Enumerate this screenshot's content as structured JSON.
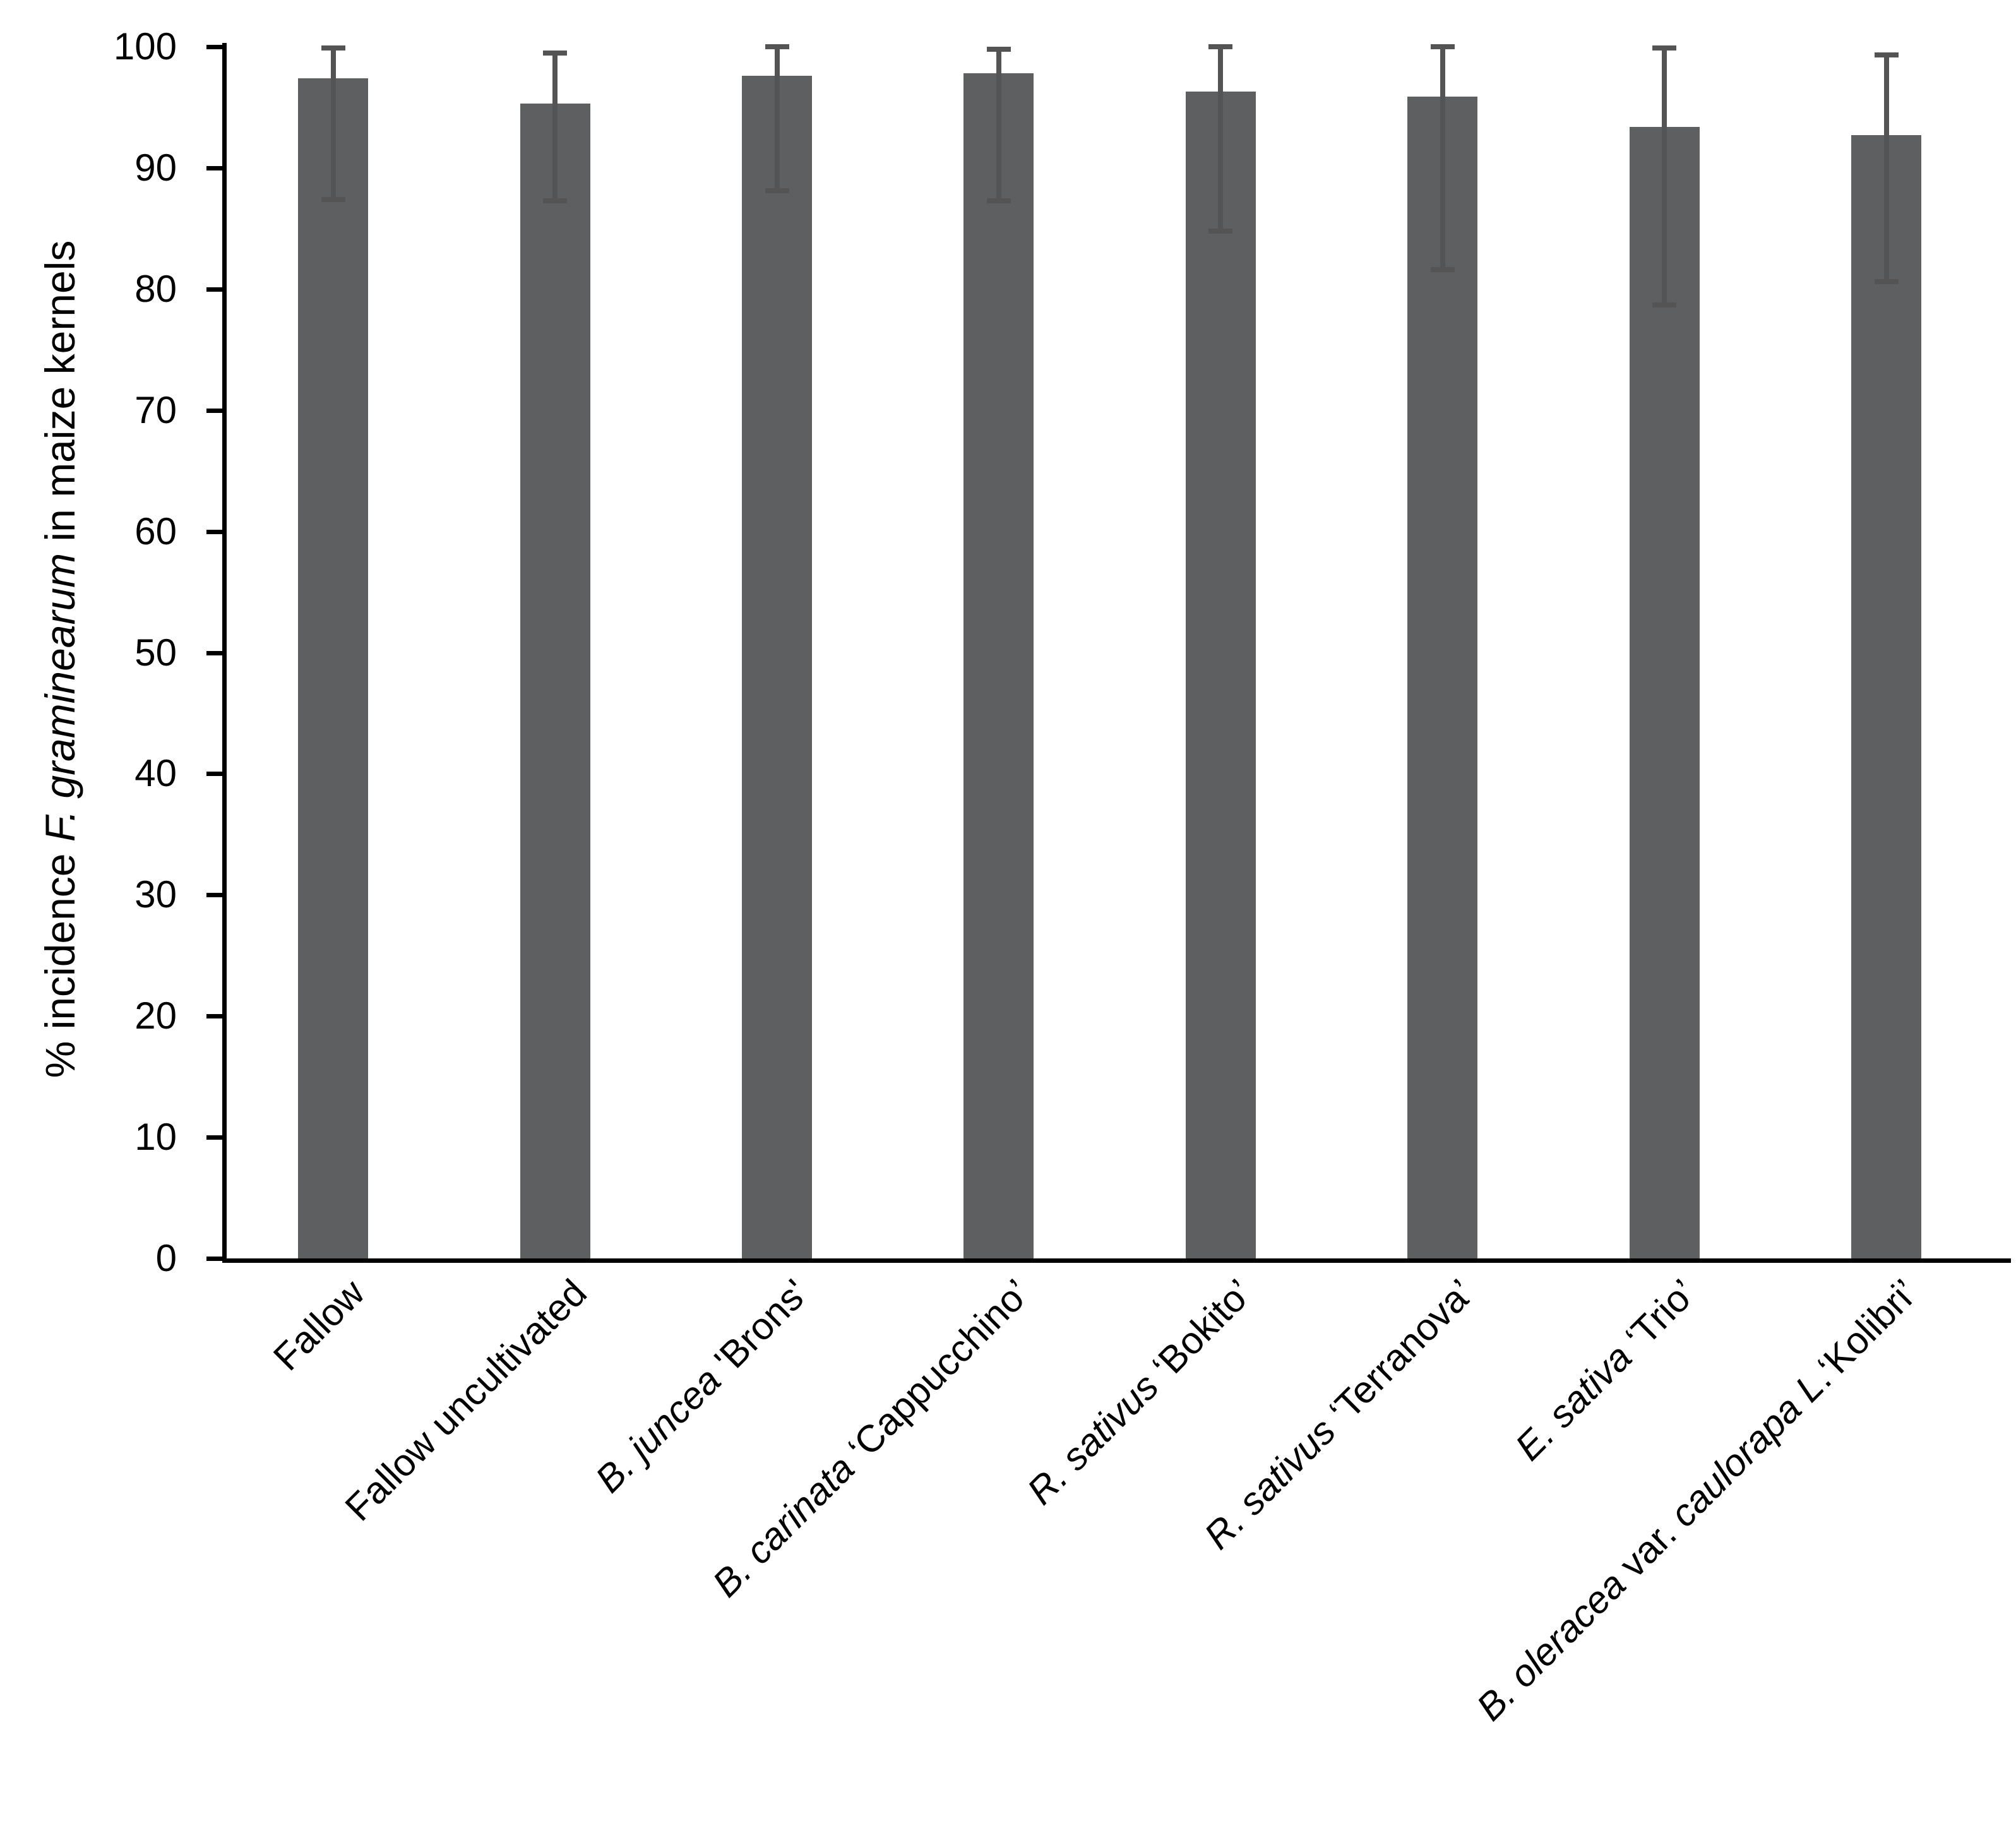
{
  "figure": {
    "background_color": "#ffffff",
    "axis_color": "#000000",
    "bar_color": "#5e5f60",
    "error_bar_color": "#545454",
    "text_color": "#000000"
  },
  "chart_data": {
    "type": "bar",
    "title": "",
    "xlabel": "",
    "ylabel": "% incidence F. graminearum in maize kernels",
    "ylabel_rich": [
      {
        "t": "% incidence ",
        "i": false
      },
      {
        "t": "F. graminearum",
        "i": true
      },
      {
        "t": " in maize kernels",
        "i": false
      }
    ],
    "ylim": [
      0,
      100
    ],
    "yticks": [
      0,
      10,
      20,
      30,
      40,
      50,
      60,
      70,
      80,
      90,
      100
    ],
    "grid": false,
    "legend_position": "none",
    "bar_color": "#5e5f60",
    "error_bar_color": "#545454",
    "categories": [
      "Fallow",
      "Fallow uncultivated",
      "B. juncea 'Brons'",
      "B. carinata ‘Cappucchino’",
      "R. sativus ‘Bokito’",
      "R. sativus ‘Terranova’",
      "E. sativa ‘Trio’",
      "B. oleracea var. caulorapa L.‘Kolibri’"
    ],
    "categories_rich": [
      [
        {
          "t": "Fallow",
          "i": false
        }
      ],
      [
        {
          "t": "Fallow uncultivated",
          "i": false
        }
      ],
      [
        {
          "t": "B. juncea",
          "i": true
        },
        {
          "t": "   'Brons'",
          "i": false
        }
      ],
      [
        {
          "t": "B. carinata",
          "i": true
        },
        {
          "t": "   ‘Cappucchino’",
          "i": false
        }
      ],
      [
        {
          "t": "R. sativus",
          "i": true
        },
        {
          "t": "  ‘Bokito’",
          "i": false
        }
      ],
      [
        {
          "t": "R. sativus",
          "i": true
        },
        {
          "t": "  ‘Terranova’",
          "i": false
        }
      ],
      [
        {
          "t": "E. sativa",
          "i": true
        },
        {
          "t": "   ‘Trio’",
          "i": false
        }
      ],
      [
        {
          "t": "B. oleracea",
          "i": true
        },
        {
          "t": " var. ",
          "i": false
        },
        {
          "t": "caulorapa L",
          "i": true
        },
        {
          "t": ".‘Kolibri’",
          "i": false
        }
      ]
    ],
    "values": [
      97.4,
      95.3,
      97.6,
      97.8,
      96.3,
      95.9,
      93.4,
      92.7
    ],
    "error_upper": [
      99.9,
      99.5,
      100.0,
      99.8,
      100.0,
      100.0,
      99.9,
      99.3
    ],
    "error_lower": [
      87.4,
      87.3,
      88.1,
      87.3,
      84.8,
      81.6,
      78.7,
      80.6
    ]
  }
}
